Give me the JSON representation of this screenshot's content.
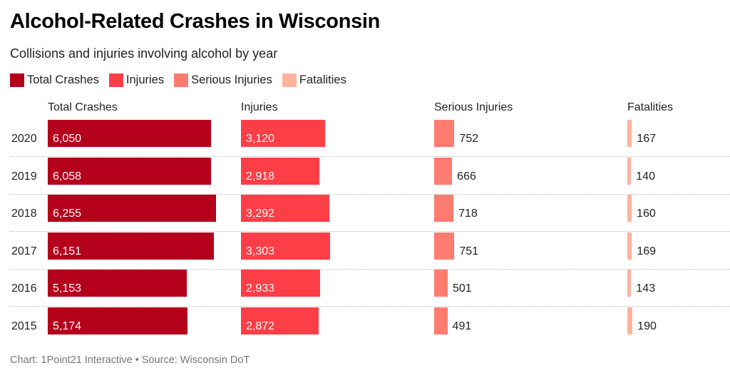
{
  "title": "Alcohol-Related Crashes in Wisconsin",
  "subtitle": "Collisions and injuries involving alcohol by year",
  "footer": "Chart: 1Point21 Interactive • Source: Wisconsin DoT",
  "chart_data": {
    "type": "bar",
    "orientation": "horizontal",
    "layout": "small multiples (one column per series)",
    "legend": "top-left",
    "categories": [
      "2020",
      "2019",
      "2018",
      "2017",
      "2016",
      "2015"
    ],
    "series": [
      {
        "name": "Total Crashes",
        "color": "#b5001c",
        "values": [
          6050,
          6058,
          6255,
          6151,
          5153,
          5174
        ],
        "labels": [
          "6,050",
          "6,058",
          "6,255",
          "6,151",
          "5,153",
          "5,174"
        ]
      },
      {
        "name": "Injuries",
        "color": "#fc3e47",
        "values": [
          3120,
          2918,
          3292,
          3303,
          2933,
          2872
        ],
        "labels": [
          "3,120",
          "2,918",
          "3,292",
          "3,303",
          "2,933",
          "2,872"
        ]
      },
      {
        "name": "Serious Injuries",
        "color": "#fe7b70",
        "values": [
          752,
          666,
          718,
          751,
          501,
          491
        ],
        "labels": [
          "752",
          "666",
          "718",
          "751",
          "501",
          "491"
        ]
      },
      {
        "name": "Fatalities",
        "color": "#ffb39d",
        "values": [
          167,
          140,
          160,
          169,
          143,
          190
        ],
        "labels": [
          "167",
          "140",
          "160",
          "169",
          "143",
          "190"
        ]
      }
    ]
  }
}
